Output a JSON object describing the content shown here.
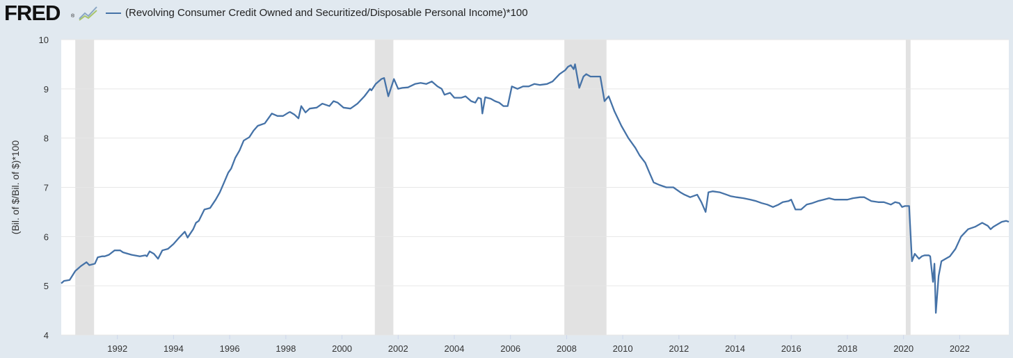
{
  "brand": {
    "logo_text": "FRED",
    "reg_mark": "®",
    "graph_icon": "trend-graph-icon"
  },
  "colors": {
    "line": "#4572a7",
    "recession": "#e2e2e2",
    "plot_bg": "#ffffff",
    "page_bg": "#e1e9f0",
    "grid": "#e6e6e6"
  },
  "chart_data": {
    "type": "line",
    "title": "",
    "ylabel": "(Bil. of $/Bil. of $)*100",
    "xlabel": "",
    "ylim": [
      4,
      10
    ],
    "xlim": [
      1990.0,
      2023.75
    ],
    "grid": "horizontal",
    "legend_placement": "top-left",
    "x_ticks": [
      "1992",
      "1994",
      "1996",
      "1998",
      "2000",
      "2002",
      "2004",
      "2006",
      "2008",
      "2010",
      "2012",
      "2014",
      "2016",
      "2018",
      "2020",
      "2022"
    ],
    "y_ticks": [
      "4",
      "5",
      "6",
      "7",
      "8",
      "9",
      "10"
    ],
    "recessions": [
      [
        1990.5,
        1991.17
      ],
      [
        2001.17,
        2001.83
      ],
      [
        2007.92,
        2009.42
      ],
      [
        2020.08,
        2020.25
      ]
    ],
    "series": [
      {
        "name": "(Revolving Consumer Credit Owned and Securitized/Disposable Personal Income)*100",
        "x": [
          1990.0,
          1990.1,
          1990.3,
          1990.5,
          1990.7,
          1990.9,
          1991.0,
          1991.2,
          1991.3,
          1991.45,
          1991.55,
          1991.7,
          1991.9,
          1992.1,
          1992.2,
          1992.5,
          1992.8,
          1993.0,
          1993.05,
          1993.15,
          1993.3,
          1993.45,
          1993.6,
          1993.8,
          1993.9,
          1994.0,
          1994.2,
          1994.4,
          1994.5,
          1994.7,
          1994.8,
          1994.9,
          1995.1,
          1995.3,
          1995.5,
          1995.65,
          1995.8,
          1995.95,
          1996.05,
          1996.2,
          1996.35,
          1996.5,
          1996.7,
          1996.85,
          1997.0,
          1997.25,
          1997.5,
          1997.7,
          1997.9,
          1998.1,
          1998.15,
          1998.3,
          1998.45,
          1998.55,
          1998.7,
          1998.85,
          1999.1,
          1999.3,
          1999.55,
          1999.7,
          1999.85,
          2000.05,
          2000.3,
          2000.55,
          2000.8,
          2001.0,
          2001.05,
          2001.2,
          2001.4,
          2001.5,
          2001.65,
          2001.85,
          2002.0,
          2002.15,
          2002.35,
          2002.6,
          2002.8,
          2003.0,
          2003.2,
          2003.4,
          2003.55,
          2003.65,
          2003.85,
          2004.0,
          2004.25,
          2004.4,
          2004.6,
          2004.75,
          2004.85,
          2004.95,
          2005.0,
          2005.1,
          2005.3,
          2005.45,
          2005.6,
          2005.75,
          2005.9,
          2006.05,
          2006.25,
          2006.45,
          2006.65,
          2006.85,
          2007.05,
          2007.3,
          2007.5,
          2007.75,
          2007.95,
          2008.05,
          2008.15,
          2008.25,
          2008.3,
          2008.45,
          2008.6,
          2008.7,
          2008.85,
          2009.05,
          2009.2,
          2009.35,
          2009.5,
          2009.7,
          2009.95,
          2010.2,
          2010.45,
          2010.6,
          2010.8,
          2010.95,
          2011.1,
          2011.3,
          2011.55,
          2011.8,
          2012.05,
          2012.2,
          2012.4,
          2012.65,
          2012.8,
          2012.95,
          2013.05,
          2013.2,
          2013.45,
          2013.7,
          2013.85,
          2014.05,
          2014.3,
          2014.55,
          2014.75,
          2014.95,
          2015.15,
          2015.35,
          2015.55,
          2015.7,
          2015.9,
          2016.0,
          2016.15,
          2016.35,
          2016.55,
          2016.75,
          2016.95,
          2017.15,
          2017.35,
          2017.55,
          2017.8,
          2018.0,
          2018.2,
          2018.45,
          2018.6,
          2018.85,
          2019.1,
          2019.3,
          2019.55,
          2019.7,
          2019.85,
          2019.95,
          2020.05,
          2020.2,
          2020.3,
          2020.4,
          2020.55,
          2020.65,
          2020.75,
          2020.9,
          2020.95,
          2021.05,
          2021.1,
          2021.15,
          2021.25,
          2021.35,
          2021.5,
          2021.65,
          2021.85,
          2022.05,
          2022.3,
          2022.55,
          2022.8,
          2023.0,
          2023.1,
          2023.2,
          2023.35,
          2023.5,
          2023.65,
          2023.75
        ],
        "values": [
          5.05,
          5.1,
          5.12,
          5.3,
          5.4,
          5.48,
          5.42,
          5.45,
          5.58,
          5.6,
          5.6,
          5.63,
          5.72,
          5.72,
          5.68,
          5.63,
          5.6,
          5.62,
          5.6,
          5.7,
          5.65,
          5.55,
          5.72,
          5.75,
          5.8,
          5.85,
          5.98,
          6.1,
          5.98,
          6.15,
          6.28,
          6.32,
          6.55,
          6.58,
          6.75,
          6.9,
          7.1,
          7.3,
          7.38,
          7.6,
          7.75,
          7.95,
          8.02,
          8.15,
          8.25,
          8.3,
          8.5,
          8.45,
          8.45,
          8.52,
          8.53,
          8.48,
          8.4,
          8.65,
          8.52,
          8.6,
          8.62,
          8.7,
          8.65,
          8.75,
          8.72,
          8.62,
          8.6,
          8.7,
          8.85,
          9.0,
          8.97,
          9.1,
          9.2,
          9.22,
          8.85,
          9.2,
          9.0,
          9.02,
          9.03,
          9.1,
          9.12,
          9.1,
          9.15,
          9.05,
          9.0,
          8.88,
          8.92,
          8.82,
          8.82,
          8.85,
          8.75,
          8.72,
          8.82,
          8.8,
          8.5,
          8.83,
          8.8,
          8.75,
          8.72,
          8.65,
          8.65,
          9.05,
          9.0,
          9.05,
          9.05,
          9.1,
          9.08,
          9.1,
          9.15,
          9.3,
          9.38,
          9.45,
          9.48,
          9.4,
          9.5,
          9.02,
          9.25,
          9.3,
          9.25,
          9.25,
          9.25,
          8.75,
          8.85,
          8.55,
          8.25,
          8.0,
          7.8,
          7.65,
          7.5,
          7.3,
          7.1,
          7.05,
          7.0,
          7.0,
          6.9,
          6.85,
          6.8,
          6.85,
          6.7,
          6.5,
          6.9,
          6.92,
          6.9,
          6.85,
          6.82,
          6.8,
          6.78,
          6.75,
          6.72,
          6.68,
          6.65,
          6.6,
          6.65,
          6.7,
          6.72,
          6.75,
          6.55,
          6.55,
          6.65,
          6.68,
          6.72,
          6.75,
          6.78,
          6.75,
          6.75,
          6.75,
          6.78,
          6.8,
          6.8,
          6.72,
          6.7,
          6.7,
          6.65,
          6.7,
          6.68,
          6.6,
          6.62,
          6.62,
          5.5,
          5.65,
          5.55,
          5.6,
          5.62,
          5.62,
          5.6,
          5.08,
          5.45,
          4.45,
          5.2,
          5.5,
          5.55,
          5.6,
          5.75,
          6.0,
          6.15,
          6.2,
          6.28,
          6.22,
          6.15,
          6.2,
          6.25,
          6.3,
          6.32,
          6.3
        ]
      }
    ]
  }
}
